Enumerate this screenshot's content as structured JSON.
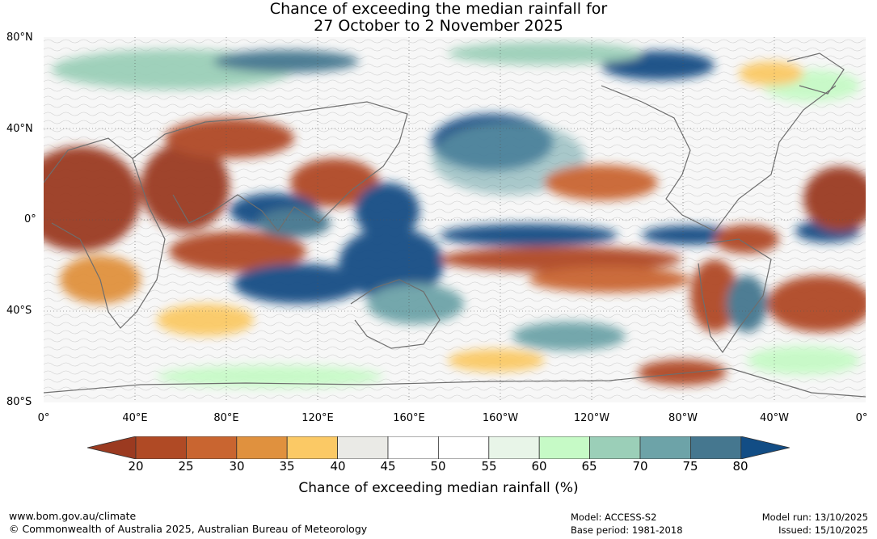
{
  "title": {
    "line1": "Chance of exceeding the median rainfall for",
    "line2": "27 October to 2 November 2025"
  },
  "axes": {
    "lat_labels": [
      "80°N",
      "40°N",
      "0°",
      "40°S",
      "80°S"
    ],
    "lon_labels": [
      "0°",
      "40°E",
      "80°E",
      "120°E",
      "160°E",
      "160°W",
      "120°W",
      "80°W",
      "40°W",
      "0°"
    ]
  },
  "legend": {
    "title": "Chance of exceeding median rainfall (%)",
    "ticks": [
      "20",
      "25",
      "30",
      "35",
      "40",
      "45",
      "50",
      "55",
      "60",
      "65",
      "70",
      "75",
      "80"
    ],
    "colors": [
      "#9b3a20",
      "#b04a25",
      "#c96530",
      "#e0913e",
      "#fbc965",
      "#eaeae6",
      "#ffffff",
      "#ffffff",
      "#e8f5e8",
      "#c6fac6",
      "#9bcfb8",
      "#6da3a8",
      "#45778f",
      "#124d85"
    ]
  },
  "footer": {
    "site": "www.bom.gov.au/climate",
    "copyright": "© Commonwealth of Australia 2025, Australian Bureau of Meteorology",
    "model": "Model: ACCESS-S2",
    "base_period": "Base period: 1981-2018",
    "model_run": "Model run: 13/10/2025",
    "issued": "Issued: 15/10/2025"
  }
}
